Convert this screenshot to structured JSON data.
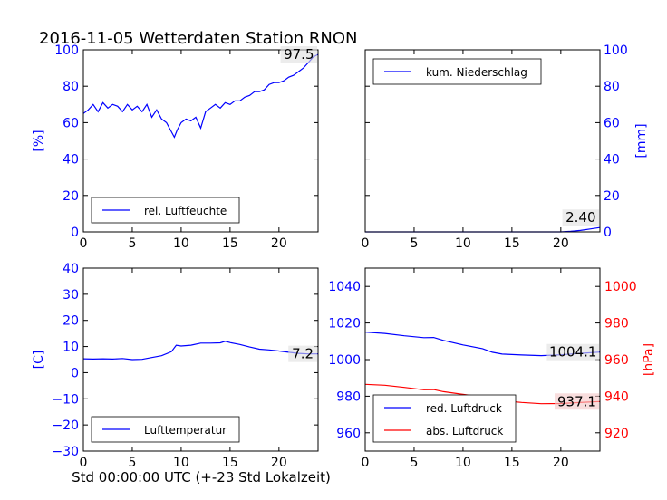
{
  "title": "2016-11-05 Wetterdaten Station RNON",
  "footer_xlabel": "Std 00:00:00 UTC (+-23 Std Lokalzeit)",
  "colors": {
    "blue": "#0000ff",
    "red": "#ff0000",
    "axis": "#000000",
    "annot_bg": "#e0e0e0",
    "annot_bg_red": "#f4c6c6"
  },
  "chart_data": [
    {
      "type": "line",
      "panel": "humidity",
      "xlim": [
        0,
        24
      ],
      "ylim": [
        0,
        100
      ],
      "xticks": [
        0,
        5,
        10,
        15,
        20
      ],
      "yticks": [
        0,
        20,
        40,
        60,
        80,
        100
      ],
      "ylabel": "[%]",
      "legend": "lower-left",
      "annotation": "97.5",
      "series": [
        {
          "name": "rel. Luftfeuchte",
          "color": "#0000ff",
          "x": [
            0,
            0.5,
            1,
            1.5,
            2,
            2.5,
            3,
            3.5,
            4,
            4.5,
            5,
            5.5,
            6,
            6.5,
            7,
            7.5,
            8,
            8.5,
            9,
            9.3,
            9.6,
            10,
            10.5,
            11,
            11.5,
            12,
            12.5,
            13,
            13.5,
            14,
            14.5,
            15,
            15.5,
            16,
            16.5,
            17,
            17.5,
            18,
            18.5,
            19,
            19.5,
            20,
            20.5,
            21,
            21.5,
            22,
            22.5,
            23,
            23.5,
            24
          ],
          "y": [
            65,
            67,
            70,
            66,
            71,
            68,
            70,
            69,
            66,
            70,
            67,
            69,
            66,
            70,
            63,
            67,
            62,
            60,
            55,
            52,
            56,
            60,
            62,
            61,
            63,
            57,
            66,
            68,
            70,
            68,
            71,
            70,
            72,
            72,
            74,
            75,
            77,
            77,
            78,
            81,
            82,
            82,
            83,
            85,
            86,
            88,
            90,
            93,
            96,
            97.5
          ]
        }
      ]
    },
    {
      "type": "line",
      "panel": "precipitation",
      "xlim": [
        0,
        24
      ],
      "ylim": [
        0,
        100
      ],
      "xticks": [
        0,
        5,
        10,
        15,
        20
      ],
      "yticks": [
        0,
        20,
        40,
        60,
        80,
        100
      ],
      "ylabel": "[mm]",
      "legend": "top-left",
      "annotation": "2.40",
      "series": [
        {
          "name": "kum. Niederschlag",
          "color": "#0000ff",
          "x": [
            0,
            20,
            21,
            22,
            23,
            24
          ],
          "y": [
            0,
            0,
            0.3,
            0.8,
            1.6,
            2.4
          ]
        }
      ]
    },
    {
      "type": "line",
      "panel": "temperature",
      "xlim": [
        0,
        24
      ],
      "ylim": [
        -30,
        40
      ],
      "xticks": [
        0,
        5,
        10,
        15,
        20
      ],
      "yticks": [
        -30,
        -20,
        -10,
        0,
        10,
        20,
        30,
        40
      ],
      "ylabel": "[C]",
      "legend": "lower-left",
      "annotation": "7.2",
      "series": [
        {
          "name": "Lufttemperatur",
          "color": "#0000ff",
          "x": [
            0,
            1,
            2,
            3,
            4,
            5,
            6,
            7,
            8,
            9,
            9.5,
            10,
            11,
            12,
            13,
            14,
            14.5,
            15,
            16,
            17,
            18,
            19,
            20,
            21,
            22,
            23,
            24
          ],
          "y": [
            5.3,
            5.2,
            5.3,
            5.2,
            5.4,
            5.0,
            5.1,
            5.8,
            6.5,
            8,
            10.5,
            10.2,
            10.5,
            11.3,
            11.3,
            11.4,
            12.0,
            11.5,
            10.8,
            9.8,
            9.0,
            8.7,
            8.3,
            7.8,
            7.4,
            7.2,
            7.2
          ]
        }
      ]
    },
    {
      "type": "line",
      "panel": "pressure",
      "xlim": [
        0,
        24
      ],
      "ylim": [
        950,
        1050
      ],
      "y2lim": [
        910,
        1010
      ],
      "xticks": [
        0,
        5,
        10,
        15,
        20
      ],
      "yticks": [
        960,
        980,
        1000,
        1020,
        1040
      ],
      "y2ticks": [
        920,
        940,
        960,
        980,
        1000
      ],
      "y2label": "[hPa]",
      "legend": "lower-left",
      "annotations": [
        "1004.1",
        "937.1"
      ],
      "series": [
        {
          "name": "red. Luftdruck",
          "color": "#0000ff",
          "axis": "left",
          "x": [
            0,
            2,
            4,
            6,
            7,
            8,
            10,
            12,
            13,
            14,
            16,
            18,
            20,
            22,
            24
          ],
          "y": [
            1015,
            1014.3,
            1013,
            1012,
            1012.1,
            1010.5,
            1008,
            1006,
            1004,
            1003,
            1002.5,
            1002.2,
            1002.6,
            1003.4,
            1004.1
          ]
        },
        {
          "name": "abs. Luftdruck",
          "color": "#ff0000",
          "axis": "right",
          "x": [
            0,
            2,
            4,
            6,
            7,
            8,
            10,
            12,
            13,
            14,
            16,
            18,
            20,
            22,
            24
          ],
          "y": [
            946.5,
            946,
            944.8,
            943.5,
            943.6,
            942.5,
            941,
            939.5,
            938,
            937.5,
            936.6,
            935.9,
            936.0,
            936.6,
            937.1
          ]
        }
      ]
    }
  ]
}
